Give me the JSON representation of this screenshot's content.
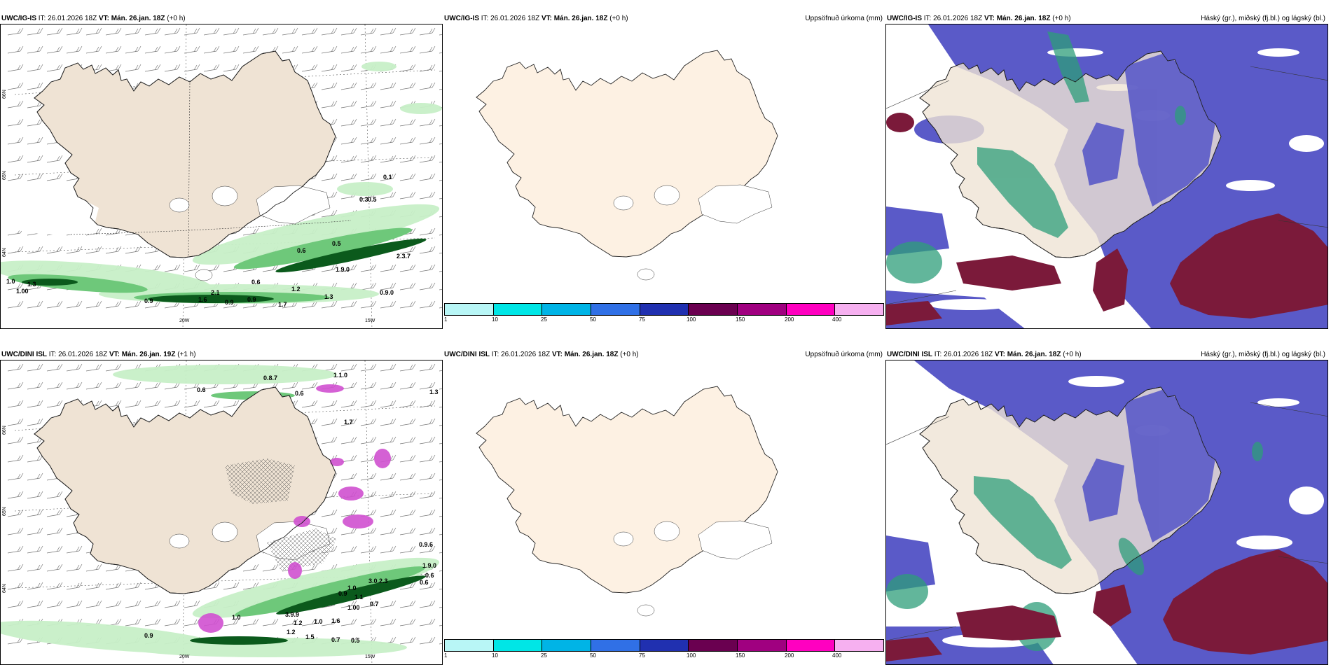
{
  "panels": [
    {
      "id": "top-left",
      "title_model": "UWC/IG-IS",
      "title_it": " IT: 26.01.2026 18Z ",
      "title_vt_label": "VT:",
      "title_vt": " Mán. 26.jan. 18Z",
      "title_offset": " (+0 h)",
      "right_title": "",
      "lat_labels": [
        "66N",
        "65N",
        "64N"
      ],
      "lon_labels": [
        "20W",
        "15W"
      ],
      "values": [
        "0.1",
        "0.3",
        "0.5",
        "0.6",
        "0.5",
        "2.3.7",
        "1.9.0",
        "0.6",
        "1.3",
        "1.0",
        "2.1",
        "1.6",
        "1.2",
        "0.9",
        "0.9",
        "1.7",
        "1.3",
        "0.9.0",
        "1.00",
        "0.9"
      ]
    },
    {
      "id": "top-mid",
      "title_model": "UWC/IG-IS",
      "title_it": " IT: 26.01.2026 18Z ",
      "title_vt_label": "VT:",
      "title_vt": " Mán. 26.jan. 18Z",
      "title_offset": " (+0 h)",
      "right_title": "Uppsöfnuð úrkoma (mm)",
      "colorbar_labels": [
        "1",
        "10",
        "25",
        "50",
        "75",
        "100",
        "150",
        "200",
        "400"
      ]
    },
    {
      "id": "top-right",
      "title_model": "UWC/IG-IS",
      "title_it": " IT: 26.01.2026 18Z ",
      "title_vt_label": "VT:",
      "title_vt": " Mán. 26.jan. 18Z",
      "title_offset": " (+0 h)",
      "right_title": "Háský (gr.), miðský (fj.bl.) og lágský (bl.)"
    },
    {
      "id": "bottom-left",
      "title_model": "UWC/DINI ISL",
      "title_it": " IT: 26.01.2026 18Z ",
      "title_vt_label": "VT:",
      "title_vt": " Mán. 26.jan. 19Z",
      "title_offset": " (+1 h)",
      "right_title": "",
      "lat_labels": [
        "66N",
        "65N",
        "64N"
      ],
      "lon_labels": [
        "20W",
        "15W"
      ],
      "values": [
        "0.6",
        "0.8.7",
        "1.1.0",
        "0.6",
        "1.3",
        "1.7",
        "0.9.6",
        "1.9.0",
        "0.6",
        "0.6",
        "3.0.2.3",
        "1.0",
        "0.9",
        "1.1",
        "1.00",
        "0.7",
        "3.9.9",
        "1.2",
        "1.6",
        "1.0",
        "1.0",
        "0.9",
        "1.2",
        "1.5",
        "0.7",
        "0.5"
      ]
    },
    {
      "id": "bottom-mid",
      "title_model": "UWC/DINI ISL",
      "title_it": " IT: 26.01.2026 18Z ",
      "title_vt_label": "VT:",
      "title_vt": " Mán. 26.jan. 18Z",
      "title_offset": " (+0 h)",
      "right_title": "Uppsöfnuð úrkoma (mm)",
      "colorbar_labels": [
        "1",
        "10",
        "25",
        "50",
        "75",
        "100",
        "150",
        "200",
        "400"
      ]
    },
    {
      "id": "bottom-right",
      "title_model": "UWC/DINI ISL",
      "title_it": " IT: 26.01.2026 18Z ",
      "title_vt_label": "VT:",
      "title_vt": " Mán. 26.jan. 18Z",
      "title_offset": " (+0 h)",
      "right_title": "Háský (gr.), miðský (fj.bl.) og lágský (bl.)"
    }
  ],
  "colors": {
    "land": "#efe3d4",
    "land_light": "#fdf1e3",
    "cloud_high": "#2e9e7a",
    "cloud_mid": "#5a5ac8",
    "cloud_low": "#7b1a3a",
    "precip_light": "#c8f0c8",
    "precip_dark": "#0b5a1c",
    "snow": "#d050d0"
  },
  "colorbar_colors": [
    "#b8f6f6",
    "#00e6e6",
    "#00b4e6",
    "#3070e6",
    "#2030b0",
    "#6a0050",
    "#a00080",
    "#ff00c0",
    "#f6b0f0"
  ]
}
